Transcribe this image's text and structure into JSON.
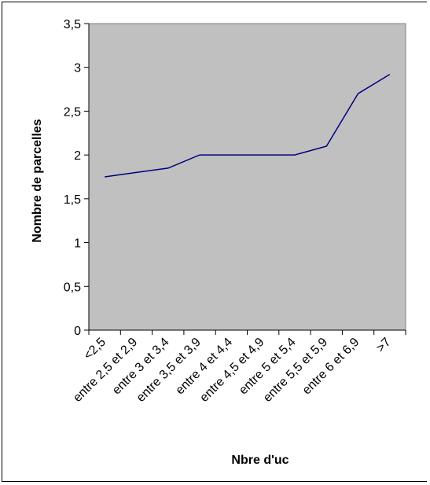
{
  "chart_data": {
    "type": "line",
    "title": "",
    "xlabel": "Nbre d'uc",
    "ylabel": "Nombre de parcelles",
    "categories": [
      "<2,5",
      "entre 2,5 et 2,9",
      "entre 3 et 3,4",
      "entre 3,5 et 3,9",
      "entre 4 et 4,4",
      "entre 4,5 et 4,9",
      "entre 5 et 5,4",
      "entre 5,5 et 5,9",
      "entre 6 et 6,9",
      ">7"
    ],
    "series": [
      {
        "values": [
          1.75,
          1.8,
          1.85,
          2.0,
          2.0,
          2.0,
          2.0,
          2.1,
          2.7,
          2.92
        ]
      }
    ],
    "ylim": [
      0,
      3.5
    ],
    "yticks": [
      "0",
      "0,5",
      "1",
      "1,5",
      "2",
      "2,5",
      "3",
      "3,5"
    ],
    "plot_background": "#c0c0c0",
    "line_color": "#000080",
    "grid": false,
    "legend": "none"
  }
}
